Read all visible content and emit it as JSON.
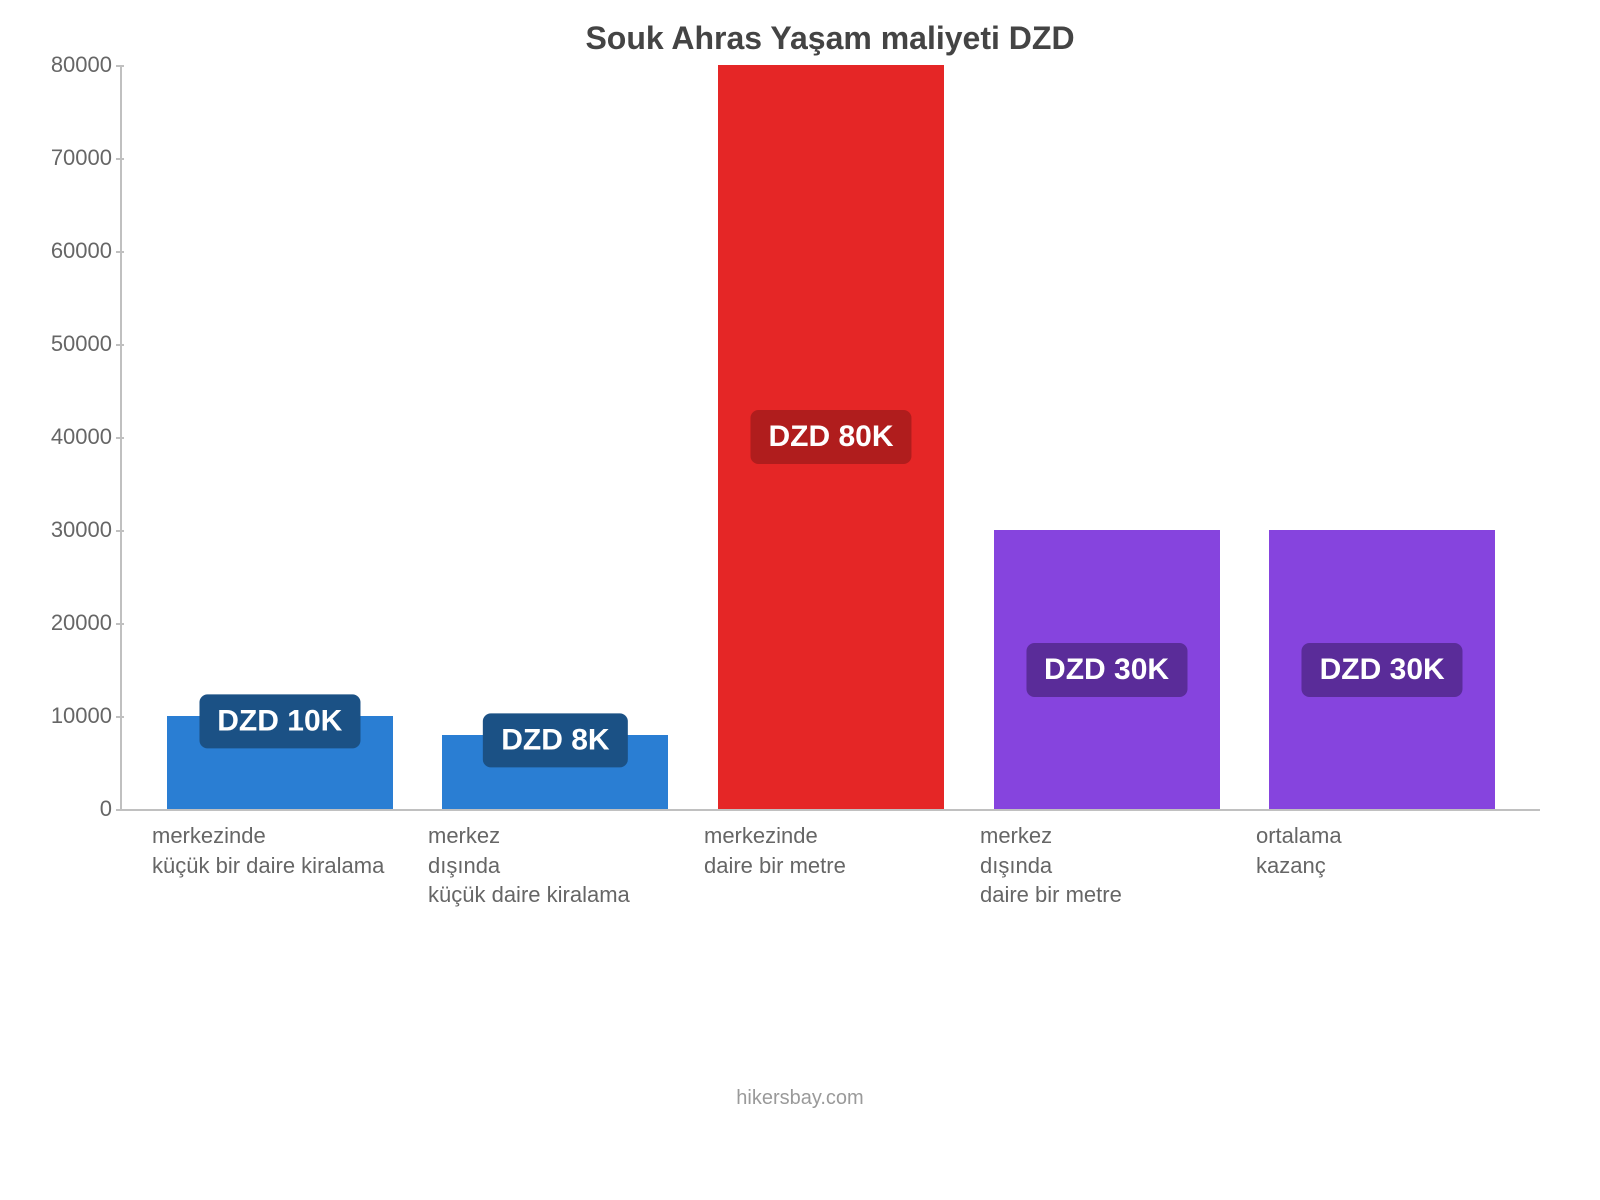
{
  "chart": {
    "type": "bar",
    "title": "Souk Ahras Yaşam maliyeti DZD",
    "title_fontsize": 32,
    "title_color": "#444444",
    "background_color": "#ffffff",
    "axis_color": "#c0c0c0",
    "tick_label_color": "#666666",
    "tick_label_fontsize": 22,
    "xlabel_fontsize": 22,
    "value_label_fontsize": 30,
    "attrib_fontsize": 20,
    "ylim_max": 80000,
    "ytick_step": 10000,
    "yticks": [
      {
        "v": 0,
        "label": "0"
      },
      {
        "v": 10000,
        "label": "10000"
      },
      {
        "v": 20000,
        "label": "20000"
      },
      {
        "v": 30000,
        "label": "30000"
      },
      {
        "v": 40000,
        "label": "40000"
      },
      {
        "v": 50000,
        "label": "50000"
      },
      {
        "v": 60000,
        "label": "60000"
      },
      {
        "v": 70000,
        "label": "70000"
      },
      {
        "v": 80000,
        "label": "80000"
      }
    ],
    "series": [
      {
        "category": "merkezinde\nküçük bir daire kiralama",
        "value": 10000,
        "bar_color": "#2a7ed3",
        "badge_bg": "#1b5185",
        "value_label": "DZD 10K"
      },
      {
        "category": "merkez\ndışında\nküçük daire kiralama",
        "value": 8000,
        "bar_color": "#2a7ed3",
        "badge_bg": "#1b5185",
        "value_label": "DZD 8K"
      },
      {
        "category": "merkezinde\ndaire bir metre",
        "value": 80000,
        "bar_color": "#e52626",
        "badge_bg": "#b01d1d",
        "value_label": "DZD 80K"
      },
      {
        "category": "merkez\ndışında\ndaire bir metre",
        "value": 30000,
        "bar_color": "#8644de",
        "badge_bg": "#5a2c99",
        "value_label": "DZD 30K"
      },
      {
        "category": "ortalama\nkazanç",
        "value": 30000,
        "bar_color": "#8644de",
        "badge_bg": "#5a2c99",
        "value_label": "DZD 30K"
      }
    ],
    "attribution": "hikersbay.com"
  }
}
